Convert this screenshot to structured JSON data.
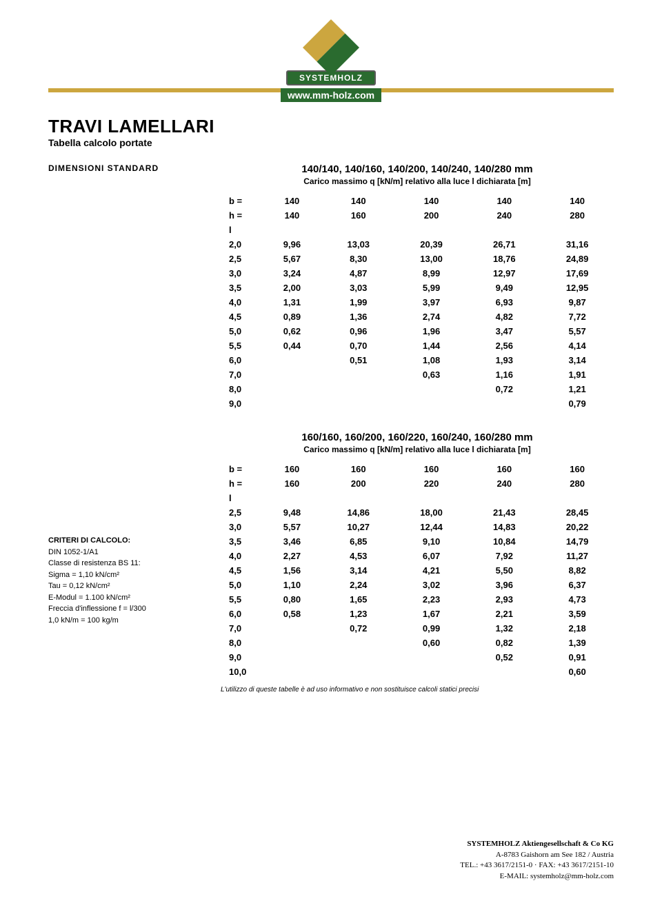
{
  "header": {
    "logo_text": "SYSTEMHOLZ",
    "url": "www.mm-holz.com",
    "band_color": "#cca63f",
    "logo_green": "#2a6b2f",
    "logo_gold": "#cca63f"
  },
  "doc": {
    "title": "TRAVI LAMELLARI",
    "subtitle": "Tabella calcolo portate",
    "section_heading": "DIMENSIONI STANDARD"
  },
  "table1": {
    "title": "140/140, 140/160, 140/200, 140/240, 140/280 mm",
    "subtitle": "Carico massimo q [kN/m] relativo alla luce l dichiarata [m]",
    "b_label": "b =",
    "h_label": "h =",
    "l_label": "l",
    "b_vals": [
      "140",
      "140",
      "140",
      "140",
      "140"
    ],
    "h_vals": [
      "140",
      "160",
      "200",
      "240",
      "280"
    ],
    "rows": [
      {
        "l": "2,0",
        "v": [
          "9,96",
          "13,03",
          "20,39",
          "26,71",
          "31,16"
        ]
      },
      {
        "l": "2,5",
        "v": [
          "5,67",
          "8,30",
          "13,00",
          "18,76",
          "24,89"
        ]
      },
      {
        "l": "3,0",
        "v": [
          "3,24",
          "4,87",
          "8,99",
          "12,97",
          "17,69"
        ]
      },
      {
        "l": "3,5",
        "v": [
          "2,00",
          "3,03",
          "5,99",
          "9,49",
          "12,95"
        ]
      },
      {
        "l": "4,0",
        "v": [
          "1,31",
          "1,99",
          "3,97",
          "6,93",
          "9,87"
        ]
      },
      {
        "l": "4,5",
        "v": [
          "0,89",
          "1,36",
          "2,74",
          "4,82",
          "7,72"
        ]
      },
      {
        "l": "5,0",
        "v": [
          "0,62",
          "0,96",
          "1,96",
          "3,47",
          "5,57"
        ]
      },
      {
        "l": "5,5",
        "v": [
          "0,44",
          "0,70",
          "1,44",
          "2,56",
          "4,14"
        ]
      },
      {
        "l": "6,0",
        "v": [
          "",
          "0,51",
          "1,08",
          "1,93",
          "3,14"
        ]
      },
      {
        "l": "7,0",
        "v": [
          "",
          "",
          "0,63",
          "1,16",
          "1,91"
        ]
      },
      {
        "l": "8,0",
        "v": [
          "",
          "",
          "",
          "0,72",
          "1,21"
        ]
      },
      {
        "l": "9,0",
        "v": [
          "",
          "",
          "",
          "",
          "0,79"
        ]
      }
    ]
  },
  "table2": {
    "title": "160/160, 160/200, 160/220, 160/240, 160/280 mm",
    "subtitle": "Carico massimo q [kN/m] relativo alla luce l dichiarata [m]",
    "b_label": "b =",
    "h_label": "h =",
    "l_label": "l",
    "b_vals": [
      "160",
      "160",
      "160",
      "160",
      "160"
    ],
    "h_vals": [
      "160",
      "200",
      "220",
      "240",
      "280"
    ],
    "rows": [
      {
        "l": "2,5",
        "v": [
          "9,48",
          "14,86",
          "18,00",
          "21,43",
          "28,45"
        ]
      },
      {
        "l": "3,0",
        "v": [
          "5,57",
          "10,27",
          "12,44",
          "14,83",
          "20,22"
        ]
      },
      {
        "l": "3,5",
        "v": [
          "3,46",
          "6,85",
          "9,10",
          "10,84",
          "14,79"
        ]
      },
      {
        "l": "4,0",
        "v": [
          "2,27",
          "4,53",
          "6,07",
          "7,92",
          "11,27"
        ]
      },
      {
        "l": "4,5",
        "v": [
          "1,56",
          "3,14",
          "4,21",
          "5,50",
          "8,82"
        ]
      },
      {
        "l": "5,0",
        "v": [
          "1,10",
          "2,24",
          "3,02",
          "3,96",
          "6,37"
        ]
      },
      {
        "l": "5,5",
        "v": [
          "0,80",
          "1,65",
          "2,23",
          "2,93",
          "4,73"
        ]
      },
      {
        "l": "6,0",
        "v": [
          "0,58",
          "1,23",
          "1,67",
          "2,21",
          "3,59"
        ]
      },
      {
        "l": "7,0",
        "v": [
          "",
          "0,72",
          "0,99",
          "1,32",
          "2,18"
        ]
      },
      {
        "l": "8,0",
        "v": [
          "",
          "",
          "0,60",
          "0,82",
          "1,39"
        ]
      },
      {
        "l": "9,0",
        "v": [
          "",
          "",
          "",
          "0,52",
          "0,91"
        ]
      },
      {
        "l": "10,0",
        "v": [
          "",
          "",
          "",
          "",
          "0,60"
        ]
      }
    ]
  },
  "criteria": {
    "heading": "CRITERI DI CALCOLO:",
    "lines": [
      "DIN 1052-1/A1",
      "Classe di resistenza BS 11:",
      "Sigma = 1,10 kN/cm²",
      "Tau = 0,12 kN/cm²",
      "E-Modul = 1.100 kN/cm²",
      "Freccia d'inflessione f = l/300",
      "1,0 kN/m = 100 kg/m"
    ]
  },
  "footnote": "L'utilizzo di queste tabelle è ad uso informativo e non sostituisce calcoli statici precisi",
  "footer": {
    "company": "SYSTEMHOLZ Aktiengesellschaft & Co KG",
    "addr": "A-8783 Gaishorn am See 182 / Austria",
    "tel": "TEL.: +43 3617/2151-0 · FAX: +43 3617/2151-10",
    "email_label": "E-MAIL:",
    "email": "systemholz@mm-holz.com"
  }
}
